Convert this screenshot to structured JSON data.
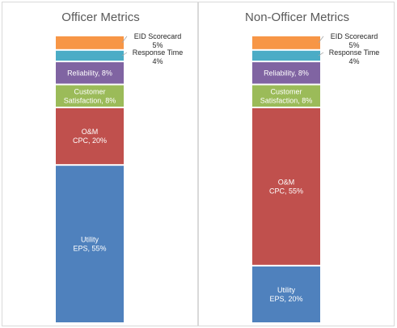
{
  "chart_data": [
    {
      "type": "bar",
      "stacked": true,
      "title": "Officer Metrics",
      "segments": [
        {
          "category": "Utility",
          "label": "Utility\nEPS, 55%",
          "value": 55,
          "color": "#4f81bd"
        },
        {
          "category": "O&M CPC",
          "label": "O&M\nCPC, 20%",
          "value": 20,
          "color": "#c0504d"
        },
        {
          "category": "Customer Satisfaction",
          "label": "Customer\nSatisfaction, 8%",
          "value": 8,
          "color": "#9bbb59"
        },
        {
          "category": "Reliability",
          "label": "Reliability, 8%",
          "value": 8,
          "color": "#8064a2"
        },
        {
          "category": "Response Time",
          "label": "Response Time\n4%",
          "value": 4,
          "color": "#4bacc6",
          "callout": true
        },
        {
          "category": "EID Scorecard",
          "label": "EID Scorecard\n5%",
          "value": 5,
          "color": "#f79646",
          "callout": true
        }
      ]
    },
    {
      "type": "bar",
      "stacked": true,
      "title": "Non-Officer Metrics",
      "segments": [
        {
          "category": "Utility",
          "label": "Utility\nEPS, 20%",
          "value": 20,
          "color": "#4f81bd"
        },
        {
          "category": "O&M CPC",
          "label": "O&M\nCPC, 55%",
          "value": 55,
          "color": "#c0504d"
        },
        {
          "category": "Customer Satisfaction",
          "label": "Customer\nSatisfaction, 8%",
          "value": 8,
          "color": "#9bbb59"
        },
        {
          "category": "Reliability",
          "label": "Reliability, 8%",
          "value": 8,
          "color": "#8064a2"
        },
        {
          "category": "Response Time",
          "label": "Response Time\n4%",
          "value": 4,
          "color": "#4bacc6",
          "callout": true
        },
        {
          "category": "EID Scorecard",
          "label": "EID Scorecard\n5%",
          "value": 5,
          "color": "#f79646",
          "callout": true
        }
      ]
    }
  ]
}
